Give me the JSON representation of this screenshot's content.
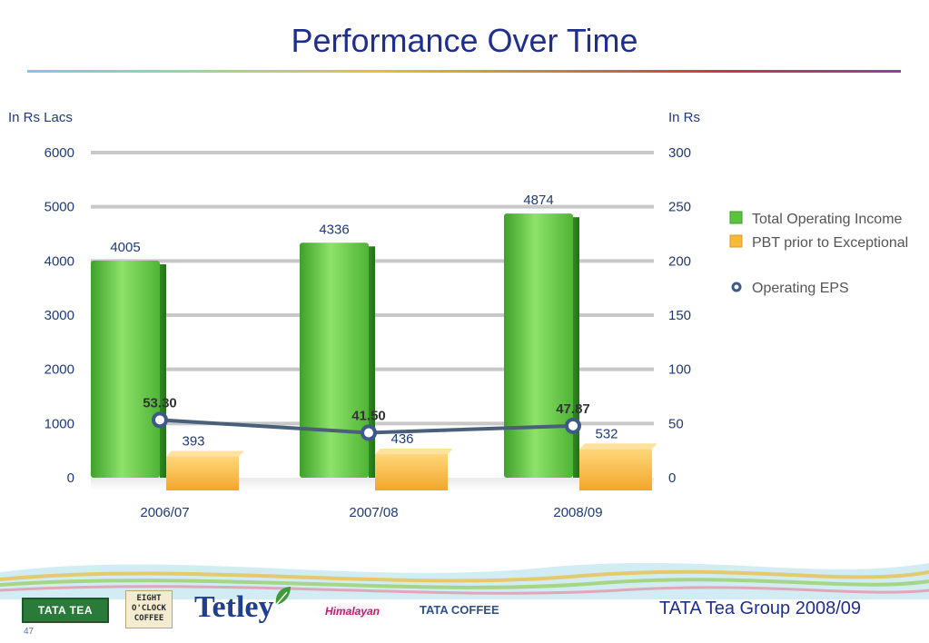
{
  "title": "Performance Over Time",
  "left_axis_unit": "In Rs Lacs",
  "right_axis_unit": "In Rs",
  "chart_data": {
    "type": "bar",
    "categories": [
      "2006/07",
      "2007/08",
      "2008/09"
    ],
    "series": [
      {
        "name": "Total Operating Income",
        "axis": "left",
        "kind": "bar",
        "color": "#5cc43c",
        "values": [
          4005,
          4336,
          4874
        ]
      },
      {
        "name": "PBT prior to Exceptional",
        "axis": "left",
        "kind": "bar",
        "color": "#f6b93a",
        "values": [
          393,
          436,
          532
        ]
      },
      {
        "name": "Operating EPS",
        "axis": "right",
        "kind": "line",
        "color": "#4a5f7a",
        "values": [
          53.3,
          41.5,
          47.87
        ]
      }
    ],
    "data_labels": {
      "income": [
        "4005",
        "4336",
        "4874"
      ],
      "pbt": [
        "393",
        "436",
        "532"
      ],
      "eps": [
        "53.30",
        "41.50",
        "47.87"
      ]
    },
    "left_ticks": [
      "0",
      "1000",
      "2000",
      "3000",
      "4000",
      "5000",
      "6000"
    ],
    "right_ticks": [
      "0",
      "50",
      "100",
      "150",
      "200",
      "250",
      "300"
    ],
    "ylim_left": [
      0,
      6000
    ],
    "ylim_right": [
      0,
      300
    ],
    "legend_position": "right",
    "grid": true
  },
  "footer": {
    "brands": {
      "tata_tea": "TATA TEA",
      "eight_oclock": "EIGHT O'CLOCK COFFEE",
      "tetley": "Tetley",
      "himalayan": "Himalayan",
      "tata_coffee": "TATA COFFEE"
    },
    "group_text": "TATA Tea Group 2008/09",
    "slide_number": "47"
  }
}
